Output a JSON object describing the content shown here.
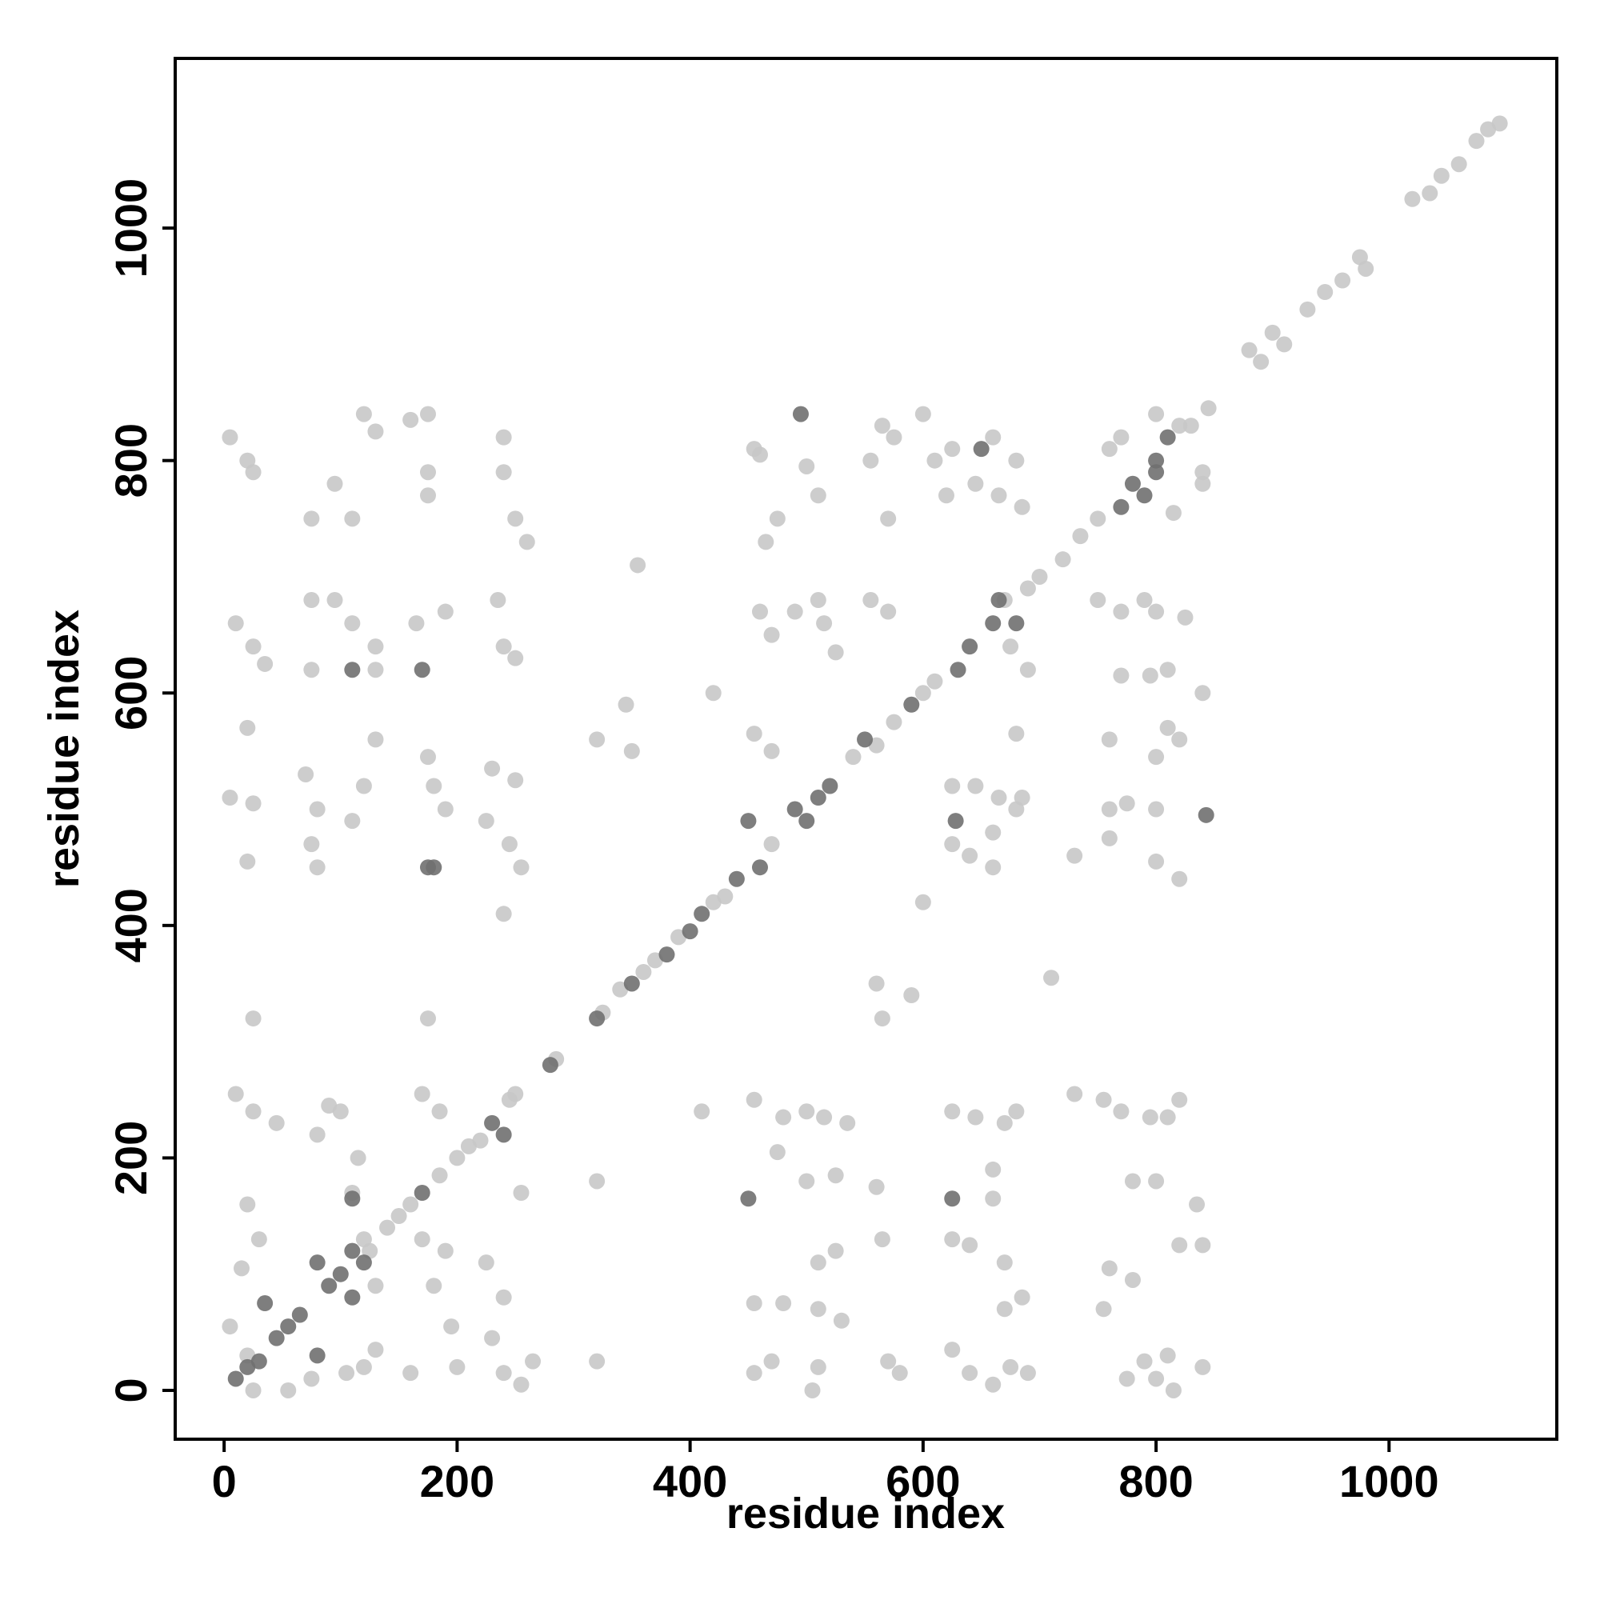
{
  "chart_data": {
    "type": "scatter",
    "x_label": "residue index",
    "y_label": "residue index",
    "xlim": [
      -42,
      1144
    ],
    "ylim": [
      -42,
      1146
    ],
    "xticks": [
      0,
      200,
      400,
      600,
      800,
      1000
    ],
    "yticks": [
      0,
      200,
      400,
      600,
      800,
      1000
    ],
    "series": [
      {
        "color": "#c8c8c8",
        "x": [
          5,
          20,
          25,
          10,
          25,
          35,
          20,
          5,
          25,
          20,
          25,
          10,
          25,
          45,
          20,
          30,
          15,
          5,
          20,
          25,
          75,
          95,
          75,
          95,
          75,
          70,
          80,
          75,
          80,
          90,
          100,
          80,
          115,
          110,
          125,
          130,
          120,
          75,
          55,
          120,
          130,
          110,
          110,
          130,
          130,
          130,
          120,
          110,
          130,
          105,
          160,
          175,
          175,
          175,
          165,
          190,
          175,
          180,
          190,
          175,
          170,
          185,
          170,
          190,
          180,
          195,
          160,
          200,
          240,
          240,
          250,
          260,
          235,
          240,
          250,
          230,
          250,
          225,
          245,
          255,
          240,
          245,
          255,
          225,
          240,
          230,
          240,
          265,
          255,
          355,
          345,
          320,
          350,
          420,
          410,
          320,
          320,
          560,
          565,
          590,
          600,
          710,
          455,
          460,
          465,
          475,
          460,
          470,
          490,
          510,
          515,
          525,
          455,
          470,
          500,
          510,
          555,
          565,
          575,
          570,
          555,
          570,
          600,
          610,
          625,
          620,
          645,
          660,
          665,
          680,
          685,
          670,
          675,
          690,
          455,
          480,
          500,
          515,
          475,
          500,
          525,
          535,
          525,
          510,
          455,
          480,
          510,
          530,
          455,
          470,
          510,
          505,
          560,
          565,
          570,
          580,
          625,
          645,
          670,
          680,
          660,
          625,
          640,
          660,
          670,
          670,
          685,
          625,
          640,
          660,
          675,
          690,
          625,
          645,
          665,
          680,
          660,
          640,
          660,
          685,
          680,
          625,
          750,
          770,
          790,
          800,
          770,
          795,
          760,
          810,
          800,
          820,
          760,
          775,
          800,
          800,
          760,
          730,
          820,
          840,
          825,
          810,
          730,
          755,
          770,
          795,
          820,
          810,
          780,
          800,
          760,
          780,
          755,
          775,
          790,
          800,
          815,
          810,
          840,
          835,
          840,
          820,
          770,
          760,
          800,
          820,
          840,
          815,
          840,
          120,
          140,
          150,
          160,
          185,
          200,
          210,
          220,
          250,
          285,
          325,
          340,
          360,
          370,
          390,
          420,
          430,
          470,
          540,
          560,
          575,
          600,
          610,
          690,
          700,
          720,
          735,
          750,
          830,
          845,
          880,
          890,
          900,
          910,
          930,
          945,
          960,
          975,
          980,
          1020,
          1035,
          1045,
          1060,
          1075,
          1085,
          1095
        ],
        "values": [
          820,
          800,
          790,
          660,
          640,
          625,
          570,
          510,
          505,
          455,
          320,
          255,
          240,
          230,
          160,
          130,
          105,
          55,
          30,
          0,
          750,
          780,
          680,
          680,
          620,
          530,
          500,
          470,
          450,
          245,
          240,
          220,
          200,
          170,
          120,
          90,
          20,
          10,
          0,
          840,
          825,
          750,
          660,
          640,
          620,
          560,
          520,
          490,
          35,
          15,
          835,
          840,
          790,
          770,
          660,
          670,
          545,
          520,
          500,
          320,
          255,
          240,
          130,
          120,
          90,
          55,
          15,
          20,
          820,
          790,
          750,
          730,
          680,
          640,
          630,
          535,
          525,
          490,
          470,
          450,
          410,
          250,
          170,
          110,
          80,
          45,
          15,
          25,
          5,
          710,
          590,
          560,
          550,
          600,
          240,
          180,
          25,
          350,
          320,
          340,
          420,
          355,
          810,
          805,
          730,
          750,
          670,
          650,
          670,
          680,
          660,
          635,
          565,
          550,
          795,
          770,
          800,
          830,
          820,
          750,
          680,
          670,
          840,
          800,
          810,
          770,
          780,
          820,
          770,
          800,
          760,
          680,
          640,
          620,
          250,
          235,
          240,
          235,
          205,
          180,
          185,
          230,
          120,
          110,
          75,
          75,
          70,
          60,
          15,
          25,
          20,
          0,
          175,
          130,
          25,
          15,
          240,
          235,
          230,
          240,
          190,
          130,
          125,
          165,
          110,
          70,
          80,
          35,
          15,
          5,
          20,
          15,
          520,
          520,
          510,
          500,
          480,
          460,
          450,
          510,
          565,
          470,
          680,
          670,
          680,
          670,
          615,
          615,
          560,
          570,
          545,
          560,
          500,
          505,
          500,
          455,
          475,
          460,
          440,
          600,
          665,
          620,
          255,
          250,
          240,
          235,
          250,
          235,
          180,
          180,
          105,
          95,
          70,
          10,
          25,
          10,
          0,
          30,
          20,
          160,
          125,
          125,
          820,
          810,
          840,
          830,
          790,
          755,
          780,
          130,
          140,
          150,
          160,
          185,
          200,
          210,
          215,
          255,
          285,
          325,
          345,
          360,
          370,
          390,
          420,
          425,
          470,
          545,
          555,
          575,
          600,
          610,
          690,
          700,
          715,
          735,
          750,
          830,
          845,
          895,
          885,
          910,
          900,
          930,
          945,
          955,
          975,
          965,
          1025,
          1030,
          1045,
          1055,
          1075,
          1085,
          1090
        ]
      },
      {
        "color": "#707070",
        "x": [
          10,
          20,
          30,
          35,
          45,
          55,
          65,
          80,
          80,
          90,
          100,
          110,
          110,
          120,
          170,
          170,
          175,
          230,
          240,
          450,
          450,
          460,
          490,
          500,
          510,
          520,
          550,
          590,
          630,
          640,
          660,
          665,
          680,
          780,
          790,
          800,
          810,
          800,
          770,
          650,
          495,
          843,
          628,
          625,
          110,
          110,
          180,
          380,
          400,
          410,
          440,
          350,
          320,
          280
        ],
        "values": [
          10,
          20,
          25,
          75,
          45,
          55,
          65,
          30,
          110,
          90,
          100,
          80,
          120,
          110,
          170,
          620,
          450,
          230,
          220,
          165,
          490,
          450,
          500,
          490,
          510,
          520,
          560,
          590,
          620,
          640,
          660,
          680,
          660,
          780,
          770,
          800,
          820,
          790,
          760,
          810,
          840,
          495,
          490,
          165,
          620,
          165,
          450,
          375,
          395,
          410,
          440,
          350,
          320,
          280
        ]
      }
    ]
  }
}
